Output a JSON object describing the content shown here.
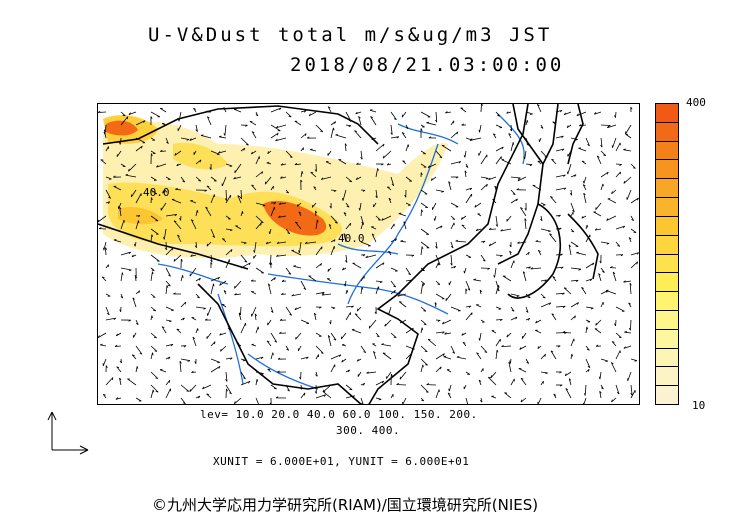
{
  "title": {
    "line1": "U-V&Dust total m/s&ug/m3 JST",
    "line2": "2018/08/21.03:00:00"
  },
  "map": {
    "contour_labels": [
      "40.0",
      "40.0"
    ],
    "land_color": "#ffffff",
    "coast_color": "#000000",
    "river_color": "#1f6fe0"
  },
  "colorbar": {
    "max_label": "400",
    "min_label": "10",
    "colors": [
      "#f05a14",
      "#f26a16",
      "#f4801a",
      "#f6941e",
      "#f8a624",
      "#fab42a",
      "#fcc630",
      "#fdd53c",
      "#fde24c",
      "#fdee58",
      "#fef470",
      "#fef68a",
      "#fef7a0",
      "#fdf5b4",
      "#fcf4c4",
      "#fbf2d2"
    ]
  },
  "levels": {
    "line1": "lev= 10.0 20.0 40.0 60.0 100. 150. 200.",
    "line2": "300. 400."
  },
  "units": "XUNIT = 6.000E+01, YUNIT = 6.000E+01",
  "credit": "©九州大学応用力学研究所(RIAM)/国立環境研究所(NIES)"
}
